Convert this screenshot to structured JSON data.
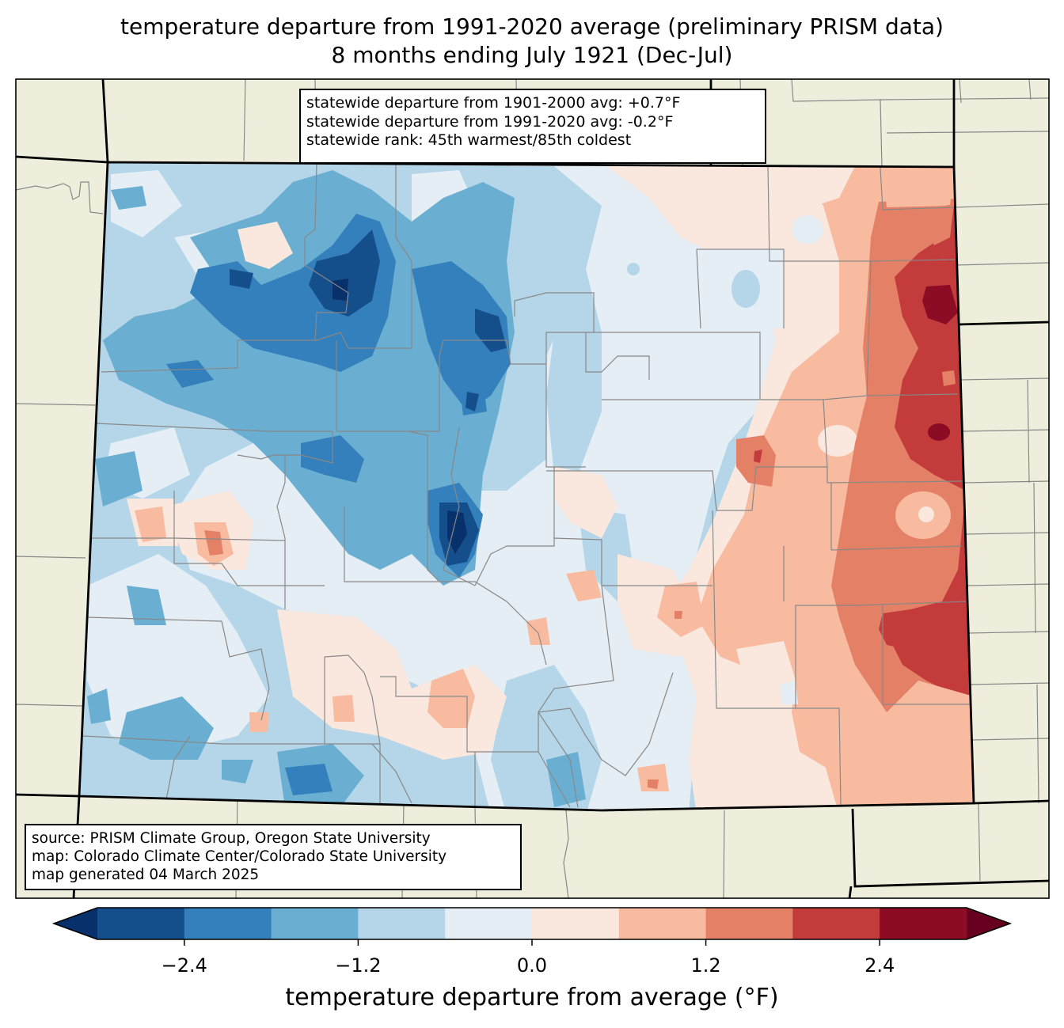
{
  "header": {
    "title_line1": "temperature departure from 1991-2020 average (preliminary PRISM data)",
    "title_line2": "8 months ending July 1921 (Dec-Jul)"
  },
  "stats_box": {
    "line1": "statewide departure from 1901-2000 avg: +0.7°F",
    "line2": "statewide departure from 1991-2020 avg: -0.2°F",
    "line3": "statewide rank: 45th warmest/85th coldest"
  },
  "credits_box": {
    "line1": "source: PRISM Climate Group, Oregon State University",
    "line2": "map: Colorado Climate Center/Colorado State University",
    "line3": "map generated 04 March 2025"
  },
  "colorbar": {
    "label": "temperature departure from average (°F)",
    "levels": [
      -3.0,
      -2.4,
      -1.8,
      -1.2,
      -0.6,
      0.0,
      0.6,
      1.2,
      1.8,
      2.4,
      3.0
    ],
    "colors": [
      "#154f8b",
      "#3380bc",
      "#6aaed2",
      "#b4d6e8",
      "#e5eef5",
      "#fae8de",
      "#f8bba0",
      "#e48066",
      "#c43b3c",
      "#8c0c25"
    ],
    "under_color": "#08306b",
    "over_color": "#67001f",
    "ticks": [
      "−2.4",
      "−1.2",
      "0.0",
      "1.2",
      "2.4"
    ],
    "tick_values": [
      -2.4,
      -1.2,
      0.0,
      1.2,
      2.4
    ]
  },
  "map_colors": {
    "land": "#efeedc",
    "county_line": "#888888",
    "state_line": "#000000"
  }
}
